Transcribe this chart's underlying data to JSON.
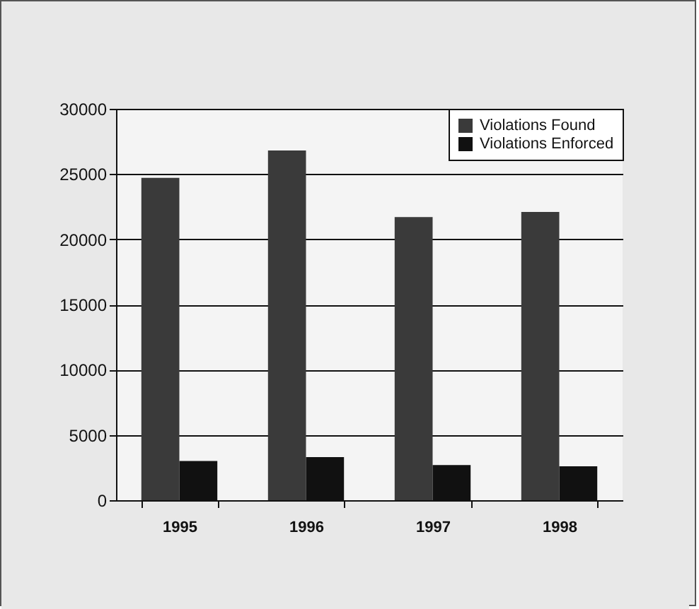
{
  "chart_data": {
    "type": "bar",
    "categories": [
      "1995",
      "1996",
      "1997",
      "1998"
    ],
    "series": [
      {
        "name": "Violations Found",
        "color": "#3a3a3a",
        "values": [
          24700,
          26800,
          21700,
          22100
        ]
      },
      {
        "name": "Violations Enforced",
        "color": "#111111",
        "values": [
          3000,
          3300,
          2700,
          2600
        ]
      }
    ],
    "ylim": [
      0,
      30000
    ],
    "yticks": [
      0,
      5000,
      10000,
      15000,
      20000,
      25000,
      30000
    ],
    "grid": "y",
    "legend": "top right"
  }
}
